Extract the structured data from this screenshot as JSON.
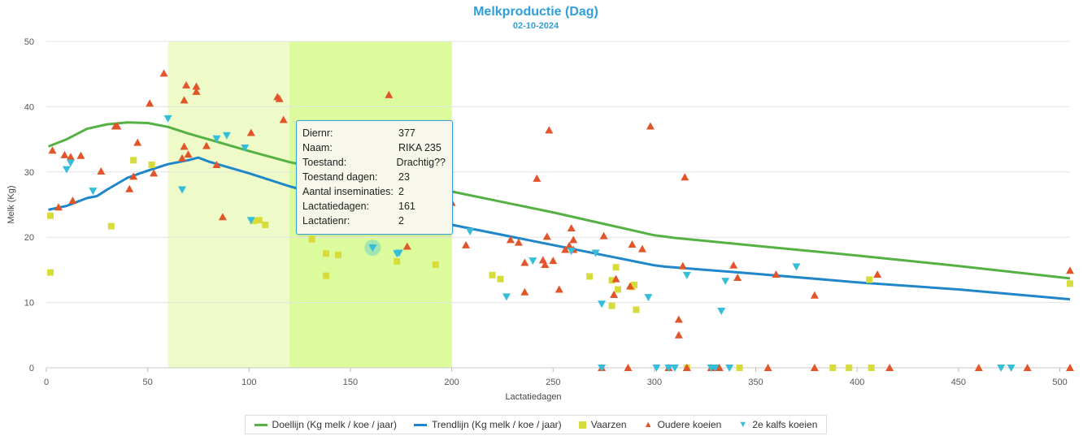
{
  "chart_data": {
    "type": "scatter",
    "title": "Melkproductie (Dag)",
    "subtitle": "02-10-2024",
    "xlabel": "Lactatiedagen",
    "ylabel": "Melk (Kg)",
    "xlim": [
      0,
      505
    ],
    "ylim": [
      0,
      50
    ],
    "x_ticks": [
      0,
      50,
      100,
      150,
      200,
      250,
      300,
      350,
      400,
      450,
      500
    ],
    "y_ticks": [
      0,
      10,
      20,
      30,
      40,
      50
    ],
    "grid": true,
    "bands": [
      {
        "from": 60,
        "to": 120,
        "color": "#eefbc8"
      },
      {
        "from": 120,
        "to": 200,
        "color": "#dcfb9c"
      }
    ],
    "series": [
      {
        "name": "Doellijn (Kg melk / koe / jaar)",
        "kind": "line",
        "color": "#55b144",
        "points": [
          [
            1,
            33.9
          ],
          [
            10,
            35.0
          ],
          [
            20,
            36.6
          ],
          [
            30,
            37.3
          ],
          [
            40,
            37.6
          ],
          [
            50,
            37.5
          ],
          [
            60,
            36.9
          ],
          [
            70,
            35.9
          ],
          [
            80,
            35.0
          ],
          [
            100,
            33.2
          ],
          [
            120,
            31.5
          ],
          [
            150,
            29.6
          ],
          [
            200,
            27.0
          ],
          [
            250,
            23.8
          ],
          [
            300,
            20.3
          ],
          [
            310,
            19.9
          ],
          [
            350,
            18.7
          ],
          [
            400,
            17.2
          ],
          [
            450,
            15.6
          ],
          [
            505,
            13.7
          ]
        ]
      },
      {
        "name": "Trendlijn (Kg melk / koe / jaar)",
        "kind": "line",
        "color": "#1f87c9",
        "points": [
          [
            1,
            24.2
          ],
          [
            10,
            24.8
          ],
          [
            20,
            26.0
          ],
          [
            25,
            26.3
          ],
          [
            30,
            27.3
          ],
          [
            40,
            29.1
          ],
          [
            50,
            30.2
          ],
          [
            60,
            31.2
          ],
          [
            70,
            31.8
          ],
          [
            75,
            32.2
          ],
          [
            80,
            31.6
          ],
          [
            100,
            29.8
          ],
          [
            120,
            27.8
          ],
          [
            150,
            25.2
          ],
          [
            200,
            21.9
          ],
          [
            250,
            18.8
          ],
          [
            300,
            15.7
          ],
          [
            305,
            15.5
          ],
          [
            350,
            14.4
          ],
          [
            400,
            13.1
          ],
          [
            450,
            12.0
          ],
          [
            505,
            10.5
          ]
        ]
      },
      {
        "name": "Vaarzen",
        "kind": "scatter",
        "marker": "square",
        "color": "#d8dc3b",
        "points": [
          [
            2,
            14.6
          ],
          [
            2,
            23.3
          ],
          [
            32,
            21.7
          ],
          [
            43,
            31.8
          ],
          [
            52,
            31.1
          ],
          [
            102,
            22.5
          ],
          [
            105,
            22.6
          ],
          [
            108,
            21.9
          ],
          [
            131,
            19.7
          ],
          [
            138,
            17.5
          ],
          [
            138,
            14.1
          ],
          [
            144,
            17.3
          ],
          [
            173,
            16.3
          ],
          [
            192,
            15.8
          ],
          [
            220,
            14.2
          ],
          [
            224,
            13.6
          ],
          [
            268,
            14.0
          ],
          [
            279,
            13.4
          ],
          [
            279,
            9.5
          ],
          [
            281,
            15.4
          ],
          [
            282,
            12.0
          ],
          [
            289,
            12.4
          ],
          [
            290,
            12.7
          ],
          [
            291,
            8.9
          ],
          [
            316,
            0
          ],
          [
            342,
            0
          ],
          [
            388,
            0
          ],
          [
            396,
            0
          ],
          [
            406,
            13.5
          ],
          [
            407,
            0
          ],
          [
            505,
            12.9
          ]
        ]
      },
      {
        "name": "Oudere koeien",
        "kind": "scatter",
        "marker": "triangle-up",
        "color": "#e2552a",
        "points": [
          [
            3,
            33.3
          ],
          [
            6,
            24.6
          ],
          [
            9,
            32.6
          ],
          [
            12,
            32.3
          ],
          [
            13,
            25.6
          ],
          [
            17,
            32.5
          ],
          [
            27,
            30.1
          ],
          [
            34,
            37.0
          ],
          [
            35,
            37.0
          ],
          [
            41,
            27.4
          ],
          [
            43,
            29.3
          ],
          [
            45,
            34.5
          ],
          [
            51,
            40.5
          ],
          [
            53,
            29.8
          ],
          [
            58,
            45.1
          ],
          [
            67,
            32.1
          ],
          [
            68,
            33.9
          ],
          [
            68,
            41.0
          ],
          [
            69,
            43.3
          ],
          [
            70,
            32.7
          ],
          [
            74,
            42.3
          ],
          [
            74,
            43.1
          ],
          [
            79,
            34.0
          ],
          [
            84,
            31.1
          ],
          [
            87,
            23.1
          ],
          [
            101,
            36.0
          ],
          [
            114,
            41.5
          ],
          [
            115,
            41.2
          ],
          [
            117,
            38.0
          ],
          [
            169,
            41.8
          ],
          [
            178,
            18.6
          ],
          [
            200,
            25.3
          ],
          [
            207,
            18.8
          ],
          [
            229,
            19.6
          ],
          [
            233,
            19.2
          ],
          [
            236,
            11.6
          ],
          [
            236,
            16.1
          ],
          [
            242,
            29.0
          ],
          [
            245,
            16.5
          ],
          [
            246,
            15.8
          ],
          [
            247,
            20.1
          ],
          [
            248,
            36.4
          ],
          [
            250,
            16.4
          ],
          [
            253,
            12.0
          ],
          [
            256,
            18.1
          ],
          [
            258,
            18.7
          ],
          [
            259,
            21.4
          ],
          [
            260,
            19.6
          ],
          [
            260,
            18.1
          ],
          [
            274,
            0
          ],
          [
            275,
            20.2
          ],
          [
            280,
            11.2
          ],
          [
            281,
            13.6
          ],
          [
            287,
            0
          ],
          [
            288,
            12.5
          ],
          [
            289,
            18.9
          ],
          [
            294,
            18.2
          ],
          [
            298,
            37.0
          ],
          [
            307,
            0
          ],
          [
            312,
            5.0
          ],
          [
            312,
            7.4
          ],
          [
            314,
            15.6
          ],
          [
            315,
            29.2
          ],
          [
            316,
            0
          ],
          [
            328,
            0
          ],
          [
            332,
            0
          ],
          [
            339,
            15.7
          ],
          [
            341,
            13.8
          ],
          [
            356,
            0
          ],
          [
            360,
            14.3
          ],
          [
            379,
            0
          ],
          [
            379,
            11.1
          ],
          [
            410,
            14.3
          ],
          [
            416,
            0
          ],
          [
            460,
            0
          ],
          [
            484,
            0
          ],
          [
            505,
            14.9
          ],
          [
            505,
            0
          ]
        ]
      },
      {
        "name": "2e kalfs koeien",
        "kind": "scatter",
        "marker": "triangle-down",
        "color": "#35bed9",
        "points": [
          [
            10,
            30.4
          ],
          [
            12,
            31.4
          ],
          [
            23,
            27.1
          ],
          [
            60,
            38.2
          ],
          [
            67,
            27.3
          ],
          [
            84,
            35.1
          ],
          [
            89,
            35.6
          ],
          [
            98,
            33.7
          ],
          [
            101,
            22.6
          ],
          [
            161,
            18.4
          ],
          [
            173,
            17.5
          ],
          [
            174,
            17.6
          ],
          [
            209,
            20.9
          ],
          [
            227,
            10.9
          ],
          [
            240,
            16.4
          ],
          [
            259,
            17.9
          ],
          [
            271,
            17.6
          ],
          [
            274,
            9.8
          ],
          [
            274,
            0
          ],
          [
            297,
            10.8
          ],
          [
            301,
            0
          ],
          [
            307,
            0
          ],
          [
            310,
            0
          ],
          [
            316,
            14.2
          ],
          [
            328,
            0
          ],
          [
            330,
            0
          ],
          [
            333,
            8.7
          ],
          [
            335,
            13.3
          ],
          [
            337,
            0
          ],
          [
            370,
            15.5
          ],
          [
            471,
            0
          ],
          [
            476,
            0
          ]
        ]
      }
    ],
    "highlight_point": {
      "series": "2e kalfs koeien",
      "x": 161,
      "y": 18.4
    }
  },
  "legend": {
    "items": [
      {
        "label": "Doellijn (Kg melk / koe / jaar)",
        "color": "#55b144"
      },
      {
        "label": "Trendlijn (Kg melk / koe / jaar)",
        "color": "#1f87c9"
      },
      {
        "label": "Vaarzen",
        "color": "#d8dc3b"
      },
      {
        "label": "Oudere koeien",
        "color": "#e2552a"
      },
      {
        "label": "2e kalfs koeien",
        "color": "#35bed9"
      }
    ]
  },
  "tooltip": {
    "rows": [
      {
        "key": "Diernr:",
        "value": "377"
      },
      {
        "key": "Naam:",
        "value": "RIKA 235"
      },
      {
        "key": "Toestand:",
        "value": "Drachtig??"
      },
      {
        "key": "Toestand dagen:",
        "value": "23"
      },
      {
        "key": "Aantal inseminaties:",
        "value": "2"
      },
      {
        "key": "Lactatiedagen:",
        "value": "161"
      },
      {
        "key": "Lactatienr:",
        "value": "2"
      }
    ]
  }
}
